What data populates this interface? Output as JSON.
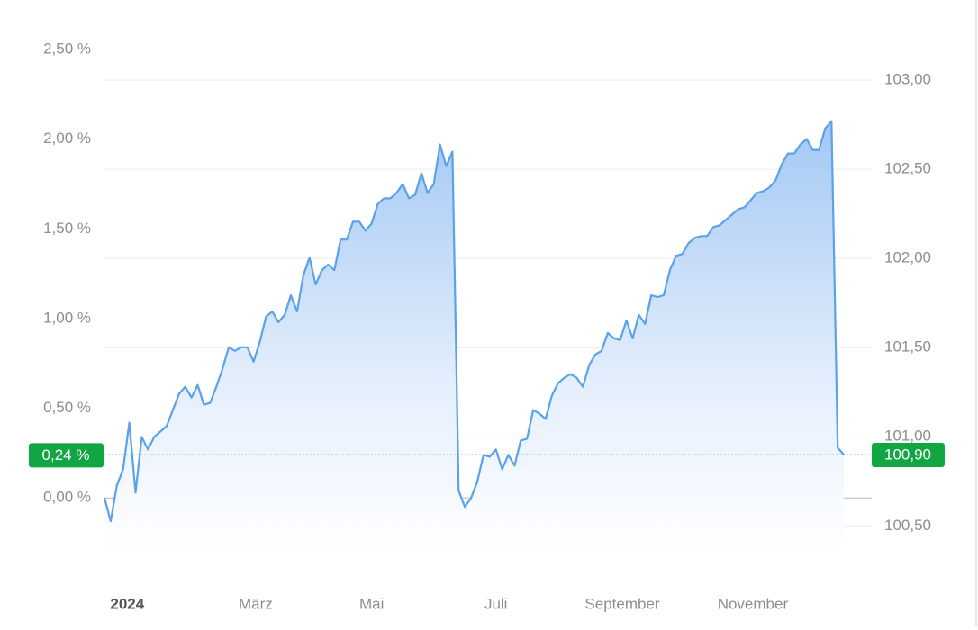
{
  "chart_data": {
    "type": "area",
    "color": "#5aa2e9",
    "x": [
      0,
      3,
      6,
      9,
      12,
      15,
      18,
      21,
      24,
      27,
      30,
      33,
      36,
      39,
      42,
      45,
      48,
      51,
      54,
      57,
      60,
      63,
      66,
      69,
      72,
      75,
      78,
      81,
      84,
      87,
      90,
      93,
      96,
      99,
      102,
      105,
      108,
      111,
      114,
      117,
      120,
      123,
      126,
      129,
      132,
      135,
      138,
      141,
      144,
      147,
      150,
      153,
      156,
      159,
      162,
      165,
      168,
      171,
      174,
      177,
      180,
      183,
      186,
      189,
      192,
      195,
      198,
      201,
      204,
      207,
      210,
      213,
      216,
      219,
      222,
      225,
      228,
      231,
      234,
      237,
      240,
      243,
      246,
      249,
      252,
      255,
      258,
      261,
      264,
      267,
      270,
      273,
      276,
      279,
      282,
      285,
      288,
      291,
      294,
      297,
      300,
      303,
      306,
      309,
      312,
      315,
      318,
      321,
      324,
      327,
      330,
      333,
      336,
      339,
      342,
      345,
      348,
      351,
      354,
      357
    ],
    "values": [
      0.0,
      -0.13,
      0.07,
      0.16,
      0.42,
      0.03,
      0.34,
      0.27,
      0.34,
      0.37,
      0.4,
      0.49,
      0.58,
      0.62,
      0.56,
      0.63,
      0.52,
      0.53,
      0.62,
      0.72,
      0.84,
      0.82,
      0.84,
      0.84,
      0.76,
      0.87,
      1.01,
      1.04,
      0.98,
      1.02,
      1.13,
      1.04,
      1.24,
      1.34,
      1.19,
      1.27,
      1.3,
      1.27,
      1.44,
      1.44,
      1.54,
      1.54,
      1.49,
      1.53,
      1.64,
      1.67,
      1.67,
      1.7,
      1.75,
      1.67,
      1.69,
      1.81,
      1.7,
      1.75,
      1.97,
      1.85,
      1.93,
      0.04,
      -0.05,
      0.0,
      0.09,
      0.24,
      0.23,
      0.27,
      0.16,
      0.24,
      0.18,
      0.32,
      0.33,
      0.49,
      0.47,
      0.44,
      0.57,
      0.64,
      0.67,
      0.69,
      0.67,
      0.62,
      0.74,
      0.8,
      0.82,
      0.92,
      0.89,
      0.88,
      0.99,
      0.89,
      1.02,
      0.97,
      1.13,
      1.12,
      1.13,
      1.27,
      1.35,
      1.36,
      1.42,
      1.45,
      1.46,
      1.46,
      1.51,
      1.52,
      1.55,
      1.58,
      1.61,
      1.62,
      1.66,
      1.7,
      1.71,
      1.73,
      1.77,
      1.86,
      1.92,
      1.92,
      1.97,
      2.0,
      1.94,
      1.94,
      2.06,
      2.1,
      0.28,
      0.24
    ],
    "xlim": [
      0,
      370
    ],
    "xticks": [
      {
        "value": 11,
        "label": "2024"
      },
      {
        "value": 73,
        "label": "März"
      },
      {
        "value": 129,
        "label": "Mai"
      },
      {
        "value": 189,
        "label": "Juli"
      },
      {
        "value": 250,
        "label": "September"
      },
      {
        "value": 313,
        "label": "November"
      }
    ],
    "ylim": [
      -0.3,
      2.5
    ],
    "yticks": [
      {
        "value": 0,
        "label": "0,00 %"
      },
      {
        "value": 0.5,
        "label": "0,50 %"
      },
      {
        "value": 1,
        "label": "1,00 %"
      },
      {
        "value": 1.5,
        "label": "1,50 %"
      },
      {
        "value": 2,
        "label": "2,00 %"
      },
      {
        "value": 2.5,
        "label": "2,50 %"
      }
    ],
    "y2lim": [
      100.355,
      103.172
    ],
    "y2ticks": [
      {
        "value": 100.5,
        "label": "100,50"
      },
      {
        "value": 101,
        "label": "101,00"
      },
      {
        "value": 101.5,
        "label": "101,50"
      },
      {
        "value": 102,
        "label": "102,00"
      },
      {
        "value": 102.5,
        "label": "102,50"
      },
      {
        "value": 103,
        "label": "103,00"
      }
    ],
    "grid": true,
    "current_value": {
      "value": 0.24,
      "label": "0,24 %"
    },
    "current_value_y2": {
      "value": 100.9,
      "label": "100,90"
    },
    "marker_color": "#12a543"
  }
}
